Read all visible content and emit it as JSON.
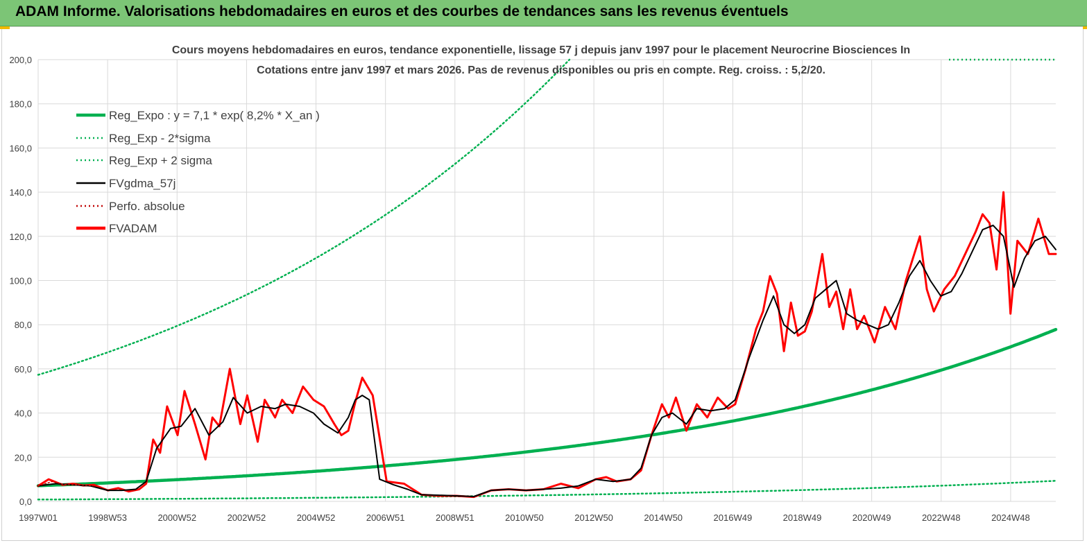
{
  "banner": {
    "title": "ADAM Informe. Valorisations hebdomadaires en euros et des courbes de tendances sans les revenus éventuels"
  },
  "colors": {
    "banner_bg": "#7cc576",
    "regression": "#00b050",
    "smoothed": "#000000",
    "price": "#ff0000",
    "grid": "#d9d9d9"
  },
  "chart_data": {
    "type": "line",
    "title": "Cours moyens hebdomadaires en euros, tendance exponentielle, lissage 57 j depuis janv 1997  pour le placement Neurocrine Biosciences In",
    "subtitle": "Cotations entre janv 1997 et mars 2026. Pas de revenus disponibles ou pris en compte. Reg. croiss. : 5,2/20.",
    "xlabel": "",
    "ylabel": "",
    "ylim": [
      0,
      200
    ],
    "y_ticks": [
      "0,0",
      "20,0",
      "40,0",
      "60,0",
      "80,0",
      "100,0",
      "120,0",
      "140,0",
      "160,0",
      "180,0",
      "200,0"
    ],
    "x_ticks": [
      "1997W01",
      "1998W53",
      "2000W52",
      "2002W52",
      "2004W52",
      "2006W51",
      "2008W51",
      "2010W50",
      "2012W50",
      "2014W50",
      "2016W49",
      "2018W49",
      "2020W49",
      "2022W48",
      "2024W48"
    ],
    "x_range": [
      1997.0,
      2026.2
    ],
    "grid": true,
    "legend_position": "top-left",
    "legend": [
      {
        "label": "Reg_Expo : y = 7,1 * exp( 8,2% *  X_an )",
        "style": "solid-thick",
        "color": "#00b050"
      },
      {
        "label": "Reg_Exp - 2*sigma",
        "style": "dotted",
        "color": "#00b050"
      },
      {
        "label": "Reg_Exp + 2 sigma",
        "style": "dotted",
        "color": "#00b050"
      },
      {
        "label": "FVgdma_57j",
        "style": "solid",
        "color": "#000000"
      },
      {
        "label": "Perfo. absolue",
        "style": "dotted",
        "color": "#c00000"
      },
      {
        "label": "FVADAM",
        "style": "solid-thick",
        "color": "#ff0000"
      }
    ],
    "series": [
      {
        "name": "Reg_Expo : y = 7,1 * exp( 8,2% *  X_an )",
        "model": "exponential",
        "a": 7.1,
        "b": 0.082,
        "x0": 1997.0,
        "color": "#00b050"
      },
      {
        "name": "Reg_Exp - 2*sigma",
        "model": "exponential",
        "a": 0.85,
        "b": 0.082,
        "x0": 1997.0,
        "color": "#00b050"
      },
      {
        "name": "Reg_Exp + 2 sigma",
        "model": "exponential",
        "a": 57.3,
        "b": 0.082,
        "x0": 1997.0,
        "color": "#00b050"
      },
      {
        "name": "FVADAM",
        "color": "#ff0000",
        "x": [
          1997.0,
          1997.3,
          1997.7,
          1998.0,
          1998.3,
          1998.6,
          1999.0,
          1999.3,
          1999.6,
          1999.9,
          2000.1,
          2000.3,
          2000.5,
          2000.7,
          2001.0,
          2001.2,
          2001.5,
          2001.8,
          2002.0,
          2002.2,
          2002.5,
          2002.8,
          2003.0,
          2003.3,
          2003.5,
          2003.8,
          2004.0,
          2004.3,
          2004.6,
          2004.9,
          2005.2,
          2005.5,
          2005.7,
          2005.9,
          2006.1,
          2006.3,
          2006.6,
          2007.0,
          2007.5,
          2008.0,
          2008.5,
          2009.0,
          2009.5,
          2010.0,
          2010.5,
          2011.0,
          2011.5,
          2012.0,
          2012.5,
          2013.0,
          2013.3,
          2013.6,
          2014.0,
          2014.3,
          2014.6,
          2014.9,
          2015.1,
          2015.3,
          2015.6,
          2015.9,
          2016.2,
          2016.5,
          2016.8,
          2017.0,
          2017.3,
          2017.6,
          2017.8,
          2018.0,
          2018.2,
          2018.4,
          2018.6,
          2018.8,
          2019.0,
          2019.2,
          2019.5,
          2019.7,
          2019.9,
          2020.1,
          2020.3,
          2020.5,
          2020.7,
          2021.0,
          2021.3,
          2021.6,
          2021.9,
          2022.1,
          2022.3,
          2022.5,
          2022.7,
          2023.0,
          2023.3,
          2023.6,
          2023.9,
          2024.1,
          2024.3,
          2024.5,
          2024.7,
          2024.9,
          2025.1,
          2025.4,
          2025.7,
          2026.0,
          2026.2
        ],
        "values": [
          7.0,
          10.0,
          7.5,
          8.0,
          7.2,
          7.5,
          5.0,
          6.0,
          4.5,
          5.5,
          8.0,
          28.0,
          22.0,
          43.0,
          30.0,
          50.0,
          35.0,
          19.0,
          38.0,
          34.0,
          60.0,
          35.0,
          48.0,
          27.0,
          46.0,
          38.0,
          46.0,
          40.0,
          52.0,
          46.0,
          43.0,
          35.0,
          30.0,
          32.0,
          45.0,
          56.0,
          48.0,
          9.0,
          8.0,
          3.0,
          2.5,
          2.5,
          2.0,
          5.0,
          5.5,
          5.0,
          5.5,
          8.0,
          6.0,
          10.0,
          11.0,
          9.0,
          10.0,
          14.0,
          30.0,
          44.0,
          38.0,
          47.0,
          32.0,
          44.0,
          38.0,
          47.0,
          42.0,
          44.0,
          60.0,
          78.0,
          86.0,
          102.0,
          94.0,
          68.0,
          90.0,
          75.0,
          77.0,
          86.0,
          112.0,
          88.0,
          95.0,
          78.0,
          96.0,
          78.0,
          84.0,
          72.0,
          88.0,
          78.0,
          100.0,
          110.0,
          120.0,
          96.0,
          86.0,
          96.0,
          102.0,
          112.0,
          122.0,
          130.0,
          126.0,
          105.0,
          140.0,
          85.0,
          118.0,
          112.0,
          128.0,
          112.0,
          112.0
        ]
      },
      {
        "name": "FVgdma_57j",
        "color": "#000000",
        "x": [
          1997.0,
          1997.5,
          1998.0,
          1998.5,
          1999.0,
          1999.4,
          1999.8,
          2000.1,
          2000.4,
          2000.8,
          2001.1,
          2001.5,
          2001.9,
          2002.3,
          2002.6,
          2003.0,
          2003.4,
          2003.8,
          2004.1,
          2004.5,
          2004.9,
          2005.2,
          2005.6,
          2005.9,
          2006.1,
          2006.3,
          2006.5,
          2006.8,
          2007.2,
          2007.6,
          2008.0,
          2008.5,
          2009.0,
          2009.5,
          2010.0,
          2010.5,
          2011.0,
          2011.5,
          2012.0,
          2012.5,
          2013.0,
          2013.5,
          2014.0,
          2014.3,
          2014.6,
          2014.9,
          2015.2,
          2015.6,
          2015.9,
          2016.3,
          2016.7,
          2017.0,
          2017.4,
          2017.8,
          2018.1,
          2018.4,
          2018.7,
          2019.0,
          2019.3,
          2019.6,
          2019.9,
          2020.2,
          2020.5,
          2020.8,
          2021.1,
          2021.4,
          2021.7,
          2022.0,
          2022.3,
          2022.6,
          2022.9,
          2023.2,
          2023.5,
          2023.8,
          2024.1,
          2024.4,
          2024.7,
          2025.0,
          2025.3,
          2025.6,
          2025.9,
          2026.2
        ],
        "values": [
          7.0,
          8.0,
          7.5,
          7.0,
          5.0,
          5.0,
          5.5,
          9.0,
          24.0,
          33.0,
          34.0,
          42.0,
          30.0,
          36.0,
          47.0,
          40.0,
          43.0,
          42.0,
          44.0,
          43.0,
          40.0,
          35.0,
          31.0,
          38.0,
          46.0,
          48.0,
          46.0,
          10.0,
          7.5,
          5.5,
          3.0,
          2.8,
          2.5,
          2.2,
          5.0,
          5.5,
          5.0,
          5.5,
          6.0,
          7.0,
          10.0,
          9.0,
          10.0,
          15.0,
          30.0,
          38.0,
          40.0,
          35.0,
          42.0,
          41.0,
          42.0,
          46.0,
          65.0,
          82.0,
          93.0,
          80.0,
          76.0,
          80.0,
          92.0,
          96.0,
          100.0,
          85.0,
          82.0,
          80.0,
          78.0,
          80.0,
          90.0,
          102.0,
          109.0,
          100.0,
          93.0,
          95.0,
          103.0,
          113.0,
          123.0,
          125.0,
          120.0,
          97.0,
          110.0,
          118.0,
          120.0,
          114.0
        ]
      },
      {
        "name": "Perfo. absolue",
        "color": "#c00000",
        "x": [
          1997.0,
          1997.4,
          1997.8,
          1998.2,
          1998.6
        ],
        "values": [
          7.0,
          9.0,
          7.5,
          7.5,
          7.0
        ]
      }
    ]
  }
}
